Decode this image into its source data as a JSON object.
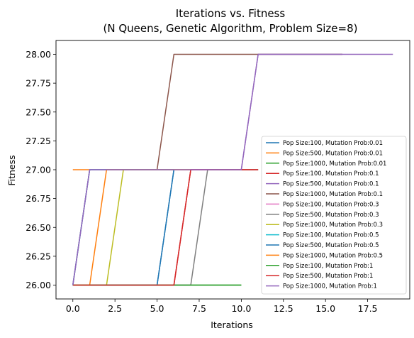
{
  "chart_data": {
    "type": "line",
    "title": "Iterations vs. Fitness",
    "subtitle": "(N Queens, Genetic Algorithm, Problem Size=8)",
    "xlabel": "Iterations",
    "ylabel": "Fitness",
    "xlim": [
      -1.0,
      20.0
    ],
    "ylim": [
      25.88,
      28.12
    ],
    "xticks": [
      0.0,
      2.5,
      5.0,
      7.5,
      10.0,
      12.5,
      15.0,
      17.5
    ],
    "xtick_labels": [
      "0.0",
      "2.5",
      "5.0",
      "7.5",
      "10.0",
      "12.5",
      "15.0",
      "17.5"
    ],
    "yticks": [
      26.0,
      26.25,
      26.5,
      26.75,
      27.0,
      27.25,
      27.5,
      27.75,
      28.0
    ],
    "ytick_labels": [
      "26.00",
      "26.25",
      "26.50",
      "26.75",
      "27.00",
      "27.25",
      "27.50",
      "27.75",
      "28.00"
    ],
    "grid": false,
    "legend_position": "lower-right",
    "series": [
      {
        "name": "Pop Size:100, Mutation Prob:0.01",
        "color": "#1f77b4",
        "x": [
          0,
          1,
          2,
          3,
          4,
          5,
          6
        ],
        "y": [
          26,
          26,
          26,
          26,
          26,
          26,
          27
        ]
      },
      {
        "name": "Pop Size:500, Mutation Prob:0.01",
        "color": "#ff7f0e",
        "x": [
          0,
          1,
          2,
          3
        ],
        "y": [
          27,
          27,
          27,
          27
        ]
      },
      {
        "name": "Pop Size:1000, Mutation Prob:0.01",
        "color": "#2ca02c",
        "x": [
          0,
          1,
          2,
          3,
          4,
          5,
          6,
          7,
          8,
          9,
          10
        ],
        "y": [
          26,
          26,
          26,
          26,
          26,
          26,
          26,
          26,
          26,
          26,
          26
        ]
      },
      {
        "name": "Pop Size:100, Mutation Prob:0.1",
        "color": "#d62728",
        "x": [
          0,
          1,
          2,
          3,
          4,
          5,
          6,
          7,
          8,
          9,
          10,
          11
        ],
        "y": [
          26,
          26,
          26,
          26,
          26,
          26,
          26,
          27,
          27,
          27,
          27,
          27
        ]
      },
      {
        "name": "Pop Size:500, Mutation Prob:0.1",
        "color": "#9467bd",
        "x": [
          0,
          1,
          2,
          3,
          4,
          5,
          6,
          7,
          8,
          9,
          10,
          11,
          12,
          13,
          14,
          15,
          16
        ],
        "y": [
          26,
          27,
          27,
          27,
          27,
          27,
          27,
          27,
          27,
          27,
          27,
          28,
          28,
          28,
          28,
          28,
          28
        ]
      },
      {
        "name": "Pop Size:1000, Mutation Prob:0.1",
        "color": "#8c564b",
        "x": [
          0,
          1,
          2,
          3,
          4,
          5,
          6,
          7,
          8,
          9,
          10,
          11,
          12,
          13,
          14,
          15,
          16
        ],
        "y": [
          26,
          27,
          27,
          27,
          27,
          27,
          28,
          28,
          28,
          28,
          28,
          28,
          28,
          28,
          28,
          28,
          28
        ]
      },
      {
        "name": "Pop Size:100, Mutation Prob:0.3",
        "color": "#e377c2",
        "x": [
          0,
          1,
          2,
          3,
          4,
          5,
          6
        ],
        "y": [
          26,
          27,
          27,
          27,
          27,
          27,
          27
        ]
      },
      {
        "name": "Pop Size:500, Mutation Prob:0.3",
        "color": "#7f7f7f",
        "x": [
          0,
          1,
          2,
          3,
          4,
          5,
          6,
          7,
          8,
          9,
          10,
          11
        ],
        "y": [
          26,
          26,
          26,
          26,
          26,
          26,
          26,
          26,
          27,
          27,
          27,
          27
        ]
      },
      {
        "name": "Pop Size:1000, Mutation Prob:0.3",
        "color": "#bcbd22",
        "x": [
          0,
          1,
          2,
          3,
          4,
          5,
          6,
          7
        ],
        "y": [
          26,
          26,
          26,
          27,
          27,
          27,
          27,
          27
        ]
      },
      {
        "name": "Pop Size:100, Mutation Prob:0.5",
        "color": "#17becf",
        "x": [
          0,
          1,
          2,
          3,
          4,
          5,
          6
        ],
        "y": [
          26,
          27,
          27,
          27,
          27,
          27,
          27
        ]
      },
      {
        "name": "Pop Size:500, Mutation Prob:0.5",
        "color": "#1f77b4",
        "x": [
          0,
          1,
          2,
          3,
          4,
          5,
          6
        ],
        "y": [
          26,
          26,
          26,
          26,
          26,
          26,
          27
        ]
      },
      {
        "name": "Pop Size:1000, Mutation Prob:0.5",
        "color": "#ff7f0e",
        "x": [
          0,
          1,
          2,
          3,
          4,
          5,
          6,
          7
        ],
        "y": [
          26,
          26,
          27,
          27,
          27,
          27,
          27,
          27
        ]
      },
      {
        "name": "Pop Size:100, Mutation Prob:1",
        "color": "#2ca02c",
        "x": [
          0,
          1,
          2,
          3,
          4,
          5,
          6,
          7,
          8,
          9,
          10
        ],
        "y": [
          26,
          26,
          26,
          26,
          26,
          26,
          26,
          26,
          26,
          26,
          26
        ]
      },
      {
        "name": "Pop Size:500, Mutation Prob:1",
        "color": "#d62728",
        "x": [
          0,
          1,
          2,
          3,
          4,
          5,
          6,
          7,
          8,
          9,
          10,
          11
        ],
        "y": [
          26,
          26,
          26,
          26,
          26,
          26,
          26,
          27,
          27,
          27,
          27,
          27
        ]
      },
      {
        "name": "Pop Size:1000, Mutation Prob:1",
        "color": "#9467bd",
        "x": [
          0,
          1,
          2,
          3,
          4,
          5,
          6,
          7,
          8,
          9,
          10,
          11,
          12,
          13,
          14,
          15,
          16,
          17,
          18,
          19
        ],
        "y": [
          26,
          27,
          27,
          27,
          27,
          27,
          27,
          27,
          27,
          27,
          27,
          28,
          28,
          28,
          28,
          28,
          28,
          28,
          28,
          28
        ]
      }
    ]
  }
}
